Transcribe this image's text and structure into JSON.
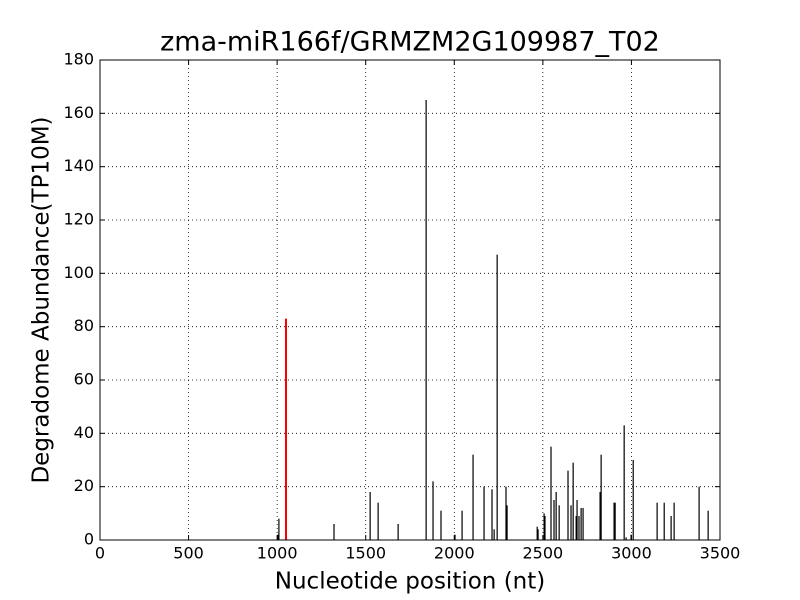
{
  "chart_data": {
    "type": "stem",
    "title": "zma-miR166f/GRMZM2G109987_T02",
    "x_label": "Nucleotide position (nt)",
    "y_label": "Degradome Abundance(TP10M)",
    "x": [
      1005,
      1010,
      1321,
      1525,
      1570,
      1683,
      1841,
      1880,
      1925,
      2004,
      2044,
      2106,
      2168,
      2213,
      2225,
      2242,
      2292,
      2298,
      2468,
      2473,
      2507,
      2512,
      2546,
      2563,
      2575,
      2592,
      2642,
      2659,
      2671,
      2688,
      2693,
      2704,
      2716,
      2727,
      2823,
      2829,
      2902,
      2908,
      2959,
      2970,
      2998,
      3010,
      3145,
      3185,
      3224,
      3241,
      3382,
      3433
    ],
    "values": [
      2,
      8,
      6,
      18,
      14,
      6,
      165,
      22,
      11,
      2,
      11,
      32,
      20,
      19,
      4,
      107,
      20,
      13,
      5,
      4,
      10,
      9,
      35,
      15,
      18,
      13,
      26,
      13,
      29,
      9,
      15,
      9,
      12,
      12,
      18,
      32,
      14,
      14,
      43,
      1,
      2,
      30,
      14,
      14,
      9,
      14,
      20,
      11
    ],
    "color": "#000000",
    "highlight_x": 1050,
    "highlight_value": 83,
    "highlight_color": "#ff0000",
    "xlim": [
      0,
      3500
    ],
    "xticks": [
      0,
      500,
      1000,
      1500,
      2000,
      2500,
      3000,
      3500
    ],
    "ylim": [
      0,
      180
    ],
    "yticks": [
      0,
      20,
      40,
      60,
      80,
      100,
      120,
      140,
      160,
      180
    ],
    "grid": true
  }
}
